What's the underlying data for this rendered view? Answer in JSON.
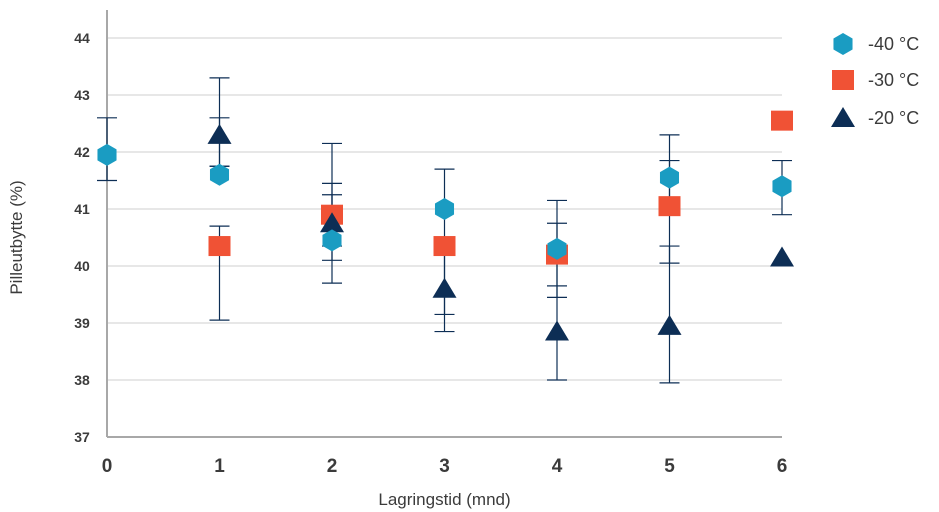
{
  "chart_data": {
    "type": "scatter",
    "title": "",
    "xlabel": "Lagringstid (mnd)",
    "ylabel": "Pilleutbytte (%)",
    "xlim": [
      0,
      6
    ],
    "ylim": [
      37,
      44
    ],
    "x_ticks": [
      "0",
      "1",
      "2",
      "3",
      "4",
      "5",
      "6"
    ],
    "y_ticks": [
      "37",
      "38",
      "39",
      "40",
      "41",
      "42",
      "43",
      "44"
    ],
    "grid": "horizontal",
    "legend_position": "top-right",
    "series": [
      {
        "name": "-40 °C",
        "marker": "hexagon",
        "color": "#1a9cc2",
        "points": [
          {
            "x": 0,
            "y": 41.95,
            "err_low": 41.5,
            "err_high": 42.6
          },
          {
            "x": 1,
            "y": 41.6,
            "err_low": 41.75,
            "err_high": 42.6
          },
          {
            "x": 2,
            "y": 40.45,
            "err_low": 40.1,
            "err_high": 41.25
          },
          {
            "x": 3,
            "y": 41.0,
            "err_low": 40.4,
            "err_high": 41.7
          },
          {
            "x": 4,
            "y": 40.3,
            "err_low": 39.65,
            "err_high": 40.75
          },
          {
            "x": 5,
            "y": 41.55,
            "err_low": 41.05,
            "err_high": 41.85
          },
          {
            "x": 6,
            "y": 41.4,
            "err_low": 40.9,
            "err_high": 41.85
          }
        ]
      },
      {
        "name": "-30 °C",
        "marker": "square",
        "color": "#f05235",
        "points": [
          {
            "x": 1,
            "y": 40.35,
            "err_low": 39.05,
            "err_high": 40.7
          },
          {
            "x": 2,
            "y": 40.9,
            "err_low": 40.35,
            "err_high": 41.45
          },
          {
            "x": 3,
            "y": 40.35,
            "err_low": 39.15,
            "err_high": 40.35
          },
          {
            "x": 4,
            "y": 40.2,
            "err_low": 39.45,
            "err_high": 41.15
          },
          {
            "x": 5,
            "y": 41.05,
            "err_low": 40.05,
            "err_high": 42.3
          },
          {
            "x": 6,
            "y": 42.55
          }
        ]
      },
      {
        "name": "-20 °C",
        "marker": "triangle",
        "color": "#0d2e55",
        "points": [
          {
            "x": 1,
            "y": 42.3,
            "err_low": 41.75,
            "err_high": 43.3
          },
          {
            "x": 2,
            "y": 40.75,
            "err_low": 39.7,
            "err_high": 42.15
          },
          {
            "x": 3,
            "y": 39.6,
            "err_low": 38.85,
            "err_high": 40.35
          },
          {
            "x": 4,
            "y": 38.85,
            "err_low": 38.0,
            "err_high": 39.65
          },
          {
            "x": 5,
            "y": 38.95,
            "err_low": 37.95,
            "err_high": 40.35
          },
          {
            "x": 6,
            "y": 40.15
          }
        ]
      }
    ]
  }
}
